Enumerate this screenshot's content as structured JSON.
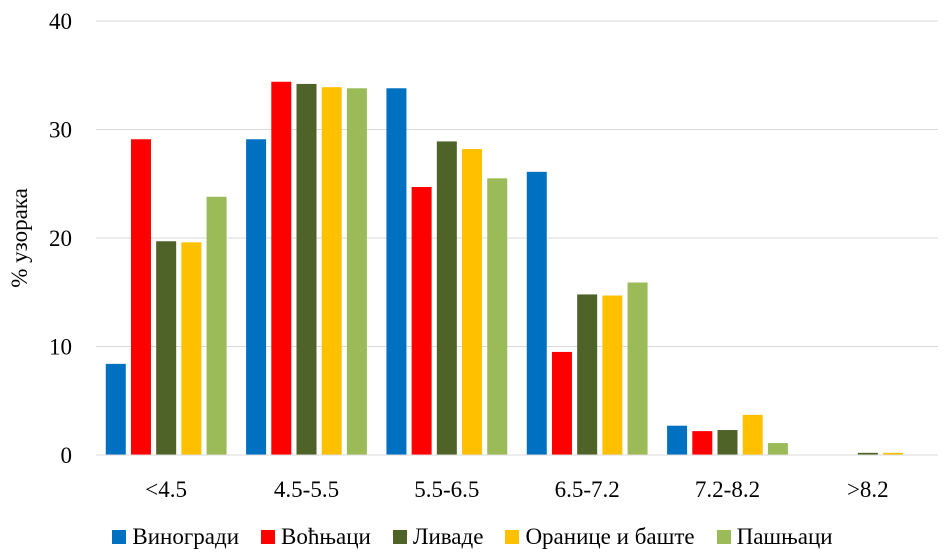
{
  "chart_data": {
    "type": "bar",
    "categories": [
      "<4.5",
      "4.5-5.5",
      "5.5-6.5",
      "6.5-7.2",
      "7.2-8.2",
      ">8.2"
    ],
    "series": [
      {
        "name": "Виногради",
        "color": "#0070C0",
        "values": [
          8.4,
          29.1,
          33.8,
          26.1,
          2.7,
          0
        ]
      },
      {
        "name": "Воћњаци",
        "color": "#FF0000",
        "values": [
          29.1,
          34.4,
          24.7,
          9.5,
          2.2,
          0
        ]
      },
      {
        "name": "Ливаде",
        "color": "#4F6228",
        "values": [
          19.7,
          34.2,
          28.9,
          14.8,
          2.3,
          0.2
        ]
      },
      {
        "name": "Оранице и баште",
        "color": "#FFC000",
        "values": [
          19.6,
          33.9,
          28.2,
          14.7,
          3.7,
          0.2
        ]
      },
      {
        "name": "Пашњаци",
        "color": "#9BBB59",
        "values": [
          23.8,
          33.8,
          25.5,
          15.9,
          1.1,
          0
        ]
      }
    ],
    "ylabel": "% узорака",
    "xlabel": "",
    "ylim": [
      0,
      40
    ],
    "yticks": [
      0,
      10,
      20,
      30,
      40
    ],
    "grid": true,
    "legend": "bottom"
  }
}
